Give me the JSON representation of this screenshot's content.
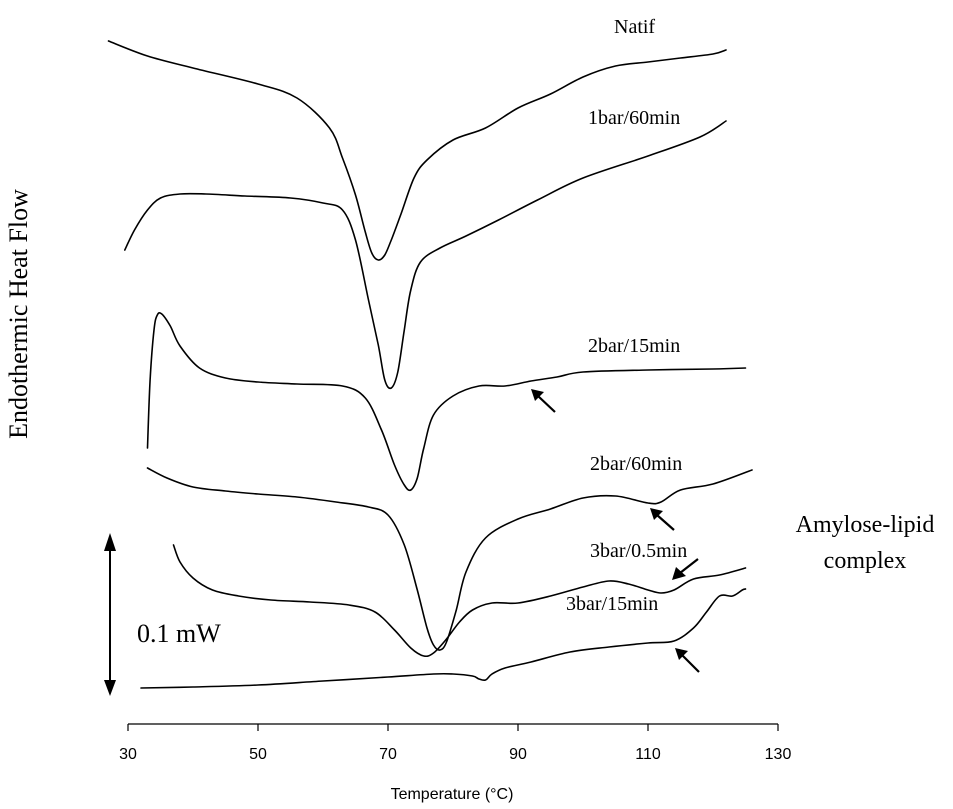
{
  "chart_data": {
    "type": "line",
    "title": "",
    "xlabel": "Temperature (°C)",
    "ylabel": "Endothermic Heat Flow",
    "xlim": [
      30,
      130
    ],
    "x_ticks": [
      30,
      50,
      70,
      90,
      110,
      130
    ],
    "grid": false,
    "scale_bar_label": "0.1 mW",
    "annotation": [
      "Amylose-lipid",
      "complex"
    ],
    "series": [
      {
        "name": "Natif",
        "x": [
          27.0,
          33.0,
          40.0,
          50.0,
          56.0,
          61.0,
          63.0,
          65.0,
          66.5,
          67.5,
          68.5,
          69.5,
          70.5,
          72.0,
          74.0,
          76.0,
          80.0,
          85.0,
          90.0,
          95.0,
          100.0,
          105.0,
          110.0,
          115.0,
          120.0,
          122.0
        ],
        "y": [
          -41,
          -56,
          -68,
          -84,
          -98,
          -128,
          -158,
          -195,
          -232,
          -253,
          -260,
          -255,
          -240,
          -214,
          -178,
          -160,
          -140,
          -128,
          -108,
          -94,
          -77,
          -66,
          -62,
          -58,
          -54,
          -50
        ]
      },
      {
        "name": "1bar/60min",
        "x": [
          29.5,
          31.0,
          33.0,
          35.0,
          38.0,
          42.0,
          48.0,
          55.0,
          60.0,
          63.0,
          65.0,
          67.0,
          68.5,
          69.5,
          70.5,
          71.5,
          72.5,
          73.5,
          75.0,
          78.0,
          82.0,
          87.0,
          93.0,
          100.0,
          110.0,
          118.0,
          122.0
        ],
        "y": [
          -250,
          -230,
          -210,
          -198,
          -194,
          -194,
          -196,
          -198,
          -203,
          -210,
          -240,
          -300,
          -345,
          -380,
          -388,
          -372,
          -330,
          -290,
          -262,
          -248,
          -236,
          -220,
          -200,
          -178,
          -156,
          -137,
          -121
        ]
      },
      {
        "name": "2bar/15min",
        "x": [
          33.0,
          33.4,
          34.0,
          34.5,
          35.2,
          36.5,
          38.0,
          41.0,
          45.0,
          50.0,
          56.0,
          63.0,
          66.5,
          69.0,
          71.0,
          72.5,
          73.5,
          74.5,
          75.5,
          77.0,
          80.0,
          84.0,
          88.0,
          92.0,
          96.0,
          100.0,
          110.0,
          120.0,
          125.0
        ],
        "y": [
          -448,
          -380,
          -330,
          -315,
          -314,
          -326,
          -346,
          -368,
          -378,
          -382,
          -384,
          -386,
          -398,
          -430,
          -465,
          -485,
          -490,
          -478,
          -448,
          -415,
          -396,
          -386,
          -386,
          -381,
          -377,
          -372,
          -370,
          -369,
          -368
        ]
      },
      {
        "name": "2bar/60min",
        "x": [
          33.0,
          36.0,
          40.0,
          45.0,
          50.0,
          56.0,
          62.0,
          67.0,
          70.0,
          72.5,
          74.5,
          76.0,
          77.0,
          78.0,
          79.0,
          80.5,
          82.0,
          85.0,
          90.0,
          95.0,
          100.0,
          105.0,
          110.0,
          112.0,
          115.0,
          120.0,
          126.0
        ],
        "y": [
          -468,
          -478,
          -487,
          -491,
          -494,
          -497,
          -502,
          -507,
          -515,
          -545,
          -590,
          -628,
          -645,
          -650,
          -642,
          -610,
          -572,
          -538,
          -519,
          -509,
          -498,
          -496,
          -503,
          -502,
          -490,
          -484,
          -470
        ]
      },
      {
        "name": "3bar/0.5min",
        "x": [
          37.0,
          38.0,
          40.0,
          43.0,
          47.0,
          52.0,
          58.0,
          64.0,
          68.0,
          71.0,
          73.5,
          75.5,
          77.0,
          79.0,
          81.0,
          83.0,
          86.0,
          90.0,
          95.0,
          100.0,
          104.0,
          107.0,
          110.0,
          112.0,
          114.0,
          117.0,
          121.0,
          125.0
        ],
        "y": [
          -545,
          -562,
          -578,
          -590,
          -596,
          -600,
          -602,
          -605,
          -612,
          -630,
          -648,
          -656,
          -653,
          -639,
          -622,
          -610,
          -603,
          -603,
          -596,
          -587,
          -581,
          -584,
          -590,
          -593,
          -590,
          -579,
          -575,
          -568
        ]
      },
      {
        "name": "3bar/15min",
        "x": [
          32.0,
          40.0,
          50.0,
          60.0,
          70.0,
          77.0,
          80.0,
          83.0,
          84.0,
          85.0,
          86.0,
          88.0,
          92.0,
          98.0,
          104.0,
          110.0,
          114.0,
          117.0,
          119.0,
          121.0,
          123.0,
          124.5,
          125.0
        ],
        "y": [
          -688,
          -687,
          -685,
          -681,
          -677,
          -674,
          -674,
          -676,
          -679,
          -680,
          -674,
          -668,
          -662,
          -652,
          -647,
          -643,
          -641,
          -628,
          -612,
          -596,
          -596,
          -590,
          -589
        ]
      }
    ],
    "series_labels": [
      "Natif",
      "1bar/60min",
      "2bar/15min",
      "2bar/60min",
      "3bar/0.5min",
      "3bar/15min"
    ]
  }
}
